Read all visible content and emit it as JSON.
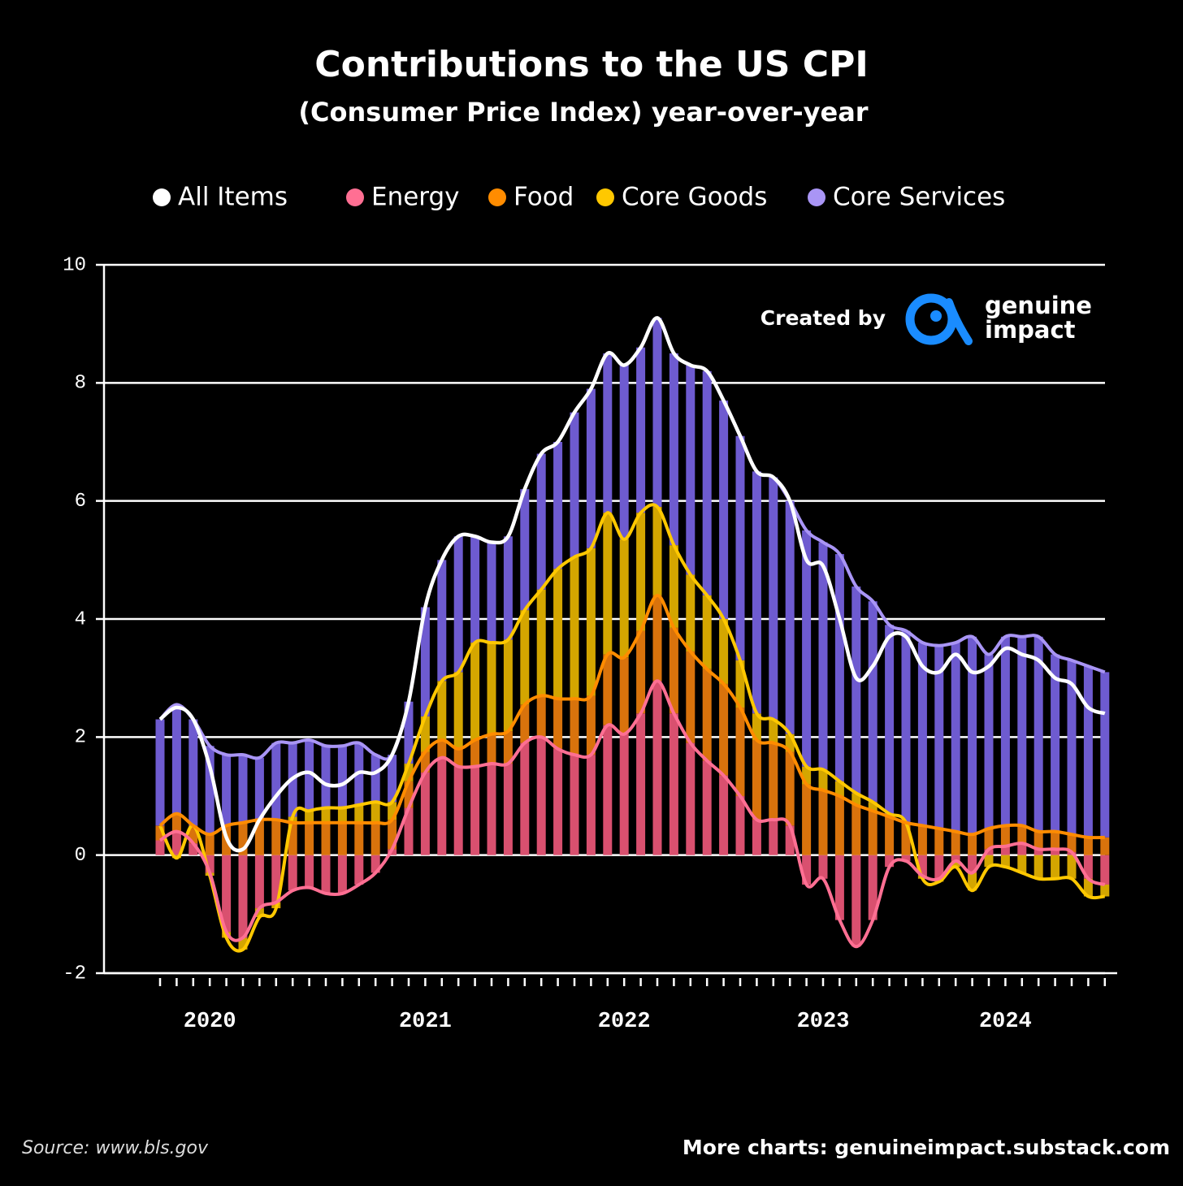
{
  "chart_data": {
    "type": "stacked-bar-line",
    "title": "Contributions to the US CPI",
    "subtitle": "(Consumer Price Index) year-over-year",
    "credit": "Created by",
    "logo_text": [
      "genuine",
      "impact"
    ],
    "source": "Source: www.bls.gov",
    "footer": "More charts: genuineimpact.substack.com",
    "categories": [
      null,
      null,
      null,
      "2020",
      null,
      null,
      null,
      null,
      null,
      null,
      null,
      null,
      null,
      null,
      null,
      null,
      "2021",
      null,
      null,
      null,
      null,
      null,
      null,
      null,
      null,
      null,
      null,
      null,
      "2022",
      null,
      null,
      null,
      null,
      null,
      null,
      null,
      null,
      null,
      null,
      null,
      "2023",
      null,
      null,
      null,
      null,
      null,
      null,
      null,
      null,
      null,
      null,
      "2024",
      null,
      null,
      null,
      null,
      null,
      null
    ],
    "lines": [
      {
        "name": "All Items",
        "color": "#ffffff",
        "values": [
          2.3,
          2.5,
          2.3,
          1.5,
          0.3,
          0.1,
          0.6,
          1.0,
          1.3,
          1.4,
          1.2,
          1.2,
          1.4,
          1.4,
          1.7,
          2.6,
          4.2,
          5.0,
          5.4,
          5.4,
          5.3,
          5.4,
          6.2,
          6.8,
          7.0,
          7.5,
          7.9,
          8.5,
          8.3,
          8.6,
          9.1,
          8.5,
          8.3,
          8.2,
          7.7,
          7.1,
          6.5,
          6.4,
          6.0,
          5.0,
          4.9,
          4.0,
          3.0,
          3.2,
          3.7,
          3.7,
          3.2,
          3.1,
          3.4,
          3.1,
          3.2,
          3.5,
          3.4,
          3.3,
          3.0,
          2.9,
          2.5,
          2.4
        ]
      }
    ],
    "series": [
      {
        "name": "Energy",
        "color": "#d9506f",
        "line_color": "#ff6f93",
        "values": [
          0.25,
          0.4,
          0.2,
          -0.3,
          -1.3,
          -1.4,
          -0.9,
          -0.8,
          -0.6,
          -0.55,
          -0.65,
          -0.65,
          -0.5,
          -0.3,
          0.1,
          0.8,
          1.4,
          1.65,
          1.5,
          1.5,
          1.55,
          1.55,
          1.9,
          2.0,
          1.8,
          1.7,
          1.7,
          2.2,
          2.05,
          2.4,
          2.95,
          2.4,
          1.9,
          1.6,
          1.35,
          1.0,
          0.6,
          0.6,
          0.5,
          -0.5,
          -0.4,
          -1.1,
          -1.55,
          -1.1,
          -0.2,
          -0.1,
          -0.35,
          -0.4,
          -0.1,
          -0.3,
          0.1,
          0.15,
          0.2,
          0.1,
          0.1,
          0.05,
          -0.4,
          -0.5
        ]
      },
      {
        "name": "Food",
        "color": "#d9730c",
        "line_color": "#ff8c00",
        "values": [
          0.25,
          0.3,
          0.3,
          0.35,
          0.5,
          0.55,
          0.6,
          0.6,
          0.55,
          0.55,
          0.55,
          0.55,
          0.55,
          0.55,
          0.5,
          0.45,
          0.35,
          0.3,
          0.3,
          0.45,
          0.5,
          0.55,
          0.65,
          0.7,
          0.85,
          0.95,
          1.0,
          1.2,
          1.3,
          1.4,
          1.45,
          1.45,
          1.55,
          1.55,
          1.55,
          1.5,
          1.35,
          1.3,
          1.25,
          1.2,
          1.1,
          1.0,
          0.85,
          0.75,
          0.65,
          0.55,
          0.5,
          0.45,
          0.4,
          0.35,
          0.35,
          0.35,
          0.3,
          0.3,
          0.3,
          0.3,
          0.3,
          0.3
        ]
      },
      {
        "name": "Core Goods",
        "color": "#d4a600",
        "line_color": "#ffc800",
        "values": [
          0,
          -0.05,
          0,
          -0.05,
          -0.1,
          -0.2,
          -0.15,
          -0.1,
          0.1,
          0.2,
          0.25,
          0.25,
          0.3,
          0.35,
          0.3,
          0.3,
          0.6,
          1.0,
          1.3,
          1.65,
          1.55,
          1.55,
          1.6,
          1.8,
          2.2,
          2.4,
          2.5,
          2.4,
          2.0,
          2.0,
          1.5,
          1.4,
          1.3,
          1.25,
          1.1,
          0.8,
          0.45,
          0.4,
          0.3,
          0.3,
          0.35,
          0.25,
          0.2,
          0.15,
          0.05,
          0,
          -0.05,
          -0.05,
          -0.1,
          -0.3,
          -0.2,
          -0.2,
          -0.3,
          -0.4,
          -0.4,
          -0.4,
          -0.3,
          -0.2
        ]
      },
      {
        "name": "Core Services",
        "color": "#6e5bd0",
        "line_color": "#a995f5",
        "values": [
          1.8,
          1.85,
          1.8,
          1.5,
          1.2,
          1.15,
          1.05,
          1.3,
          1.25,
          1.2,
          1.05,
          1.05,
          1.05,
          0.8,
          0.8,
          1.05,
          1.85,
          2.05,
          2.3,
          1.8,
          1.7,
          1.75,
          2.05,
          2.3,
          2.15,
          2.45,
          2.7,
          2.7,
          2.95,
          2.8,
          3.2,
          3.25,
          3.55,
          3.8,
          3.7,
          3.8,
          4.1,
          4.1,
          3.95,
          4.0,
          3.85,
          3.85,
          3.5,
          3.4,
          3.2,
          3.25,
          3.1,
          3.1,
          3.2,
          3.35,
          2.95,
          3.2,
          3.2,
          3.3,
          3.0,
          2.95,
          2.9,
          2.8
        ]
      }
    ],
    "ylim": [
      -2,
      10
    ],
    "yticks": [
      -2,
      0,
      2,
      4,
      6,
      8,
      10
    ],
    "grid": true
  }
}
